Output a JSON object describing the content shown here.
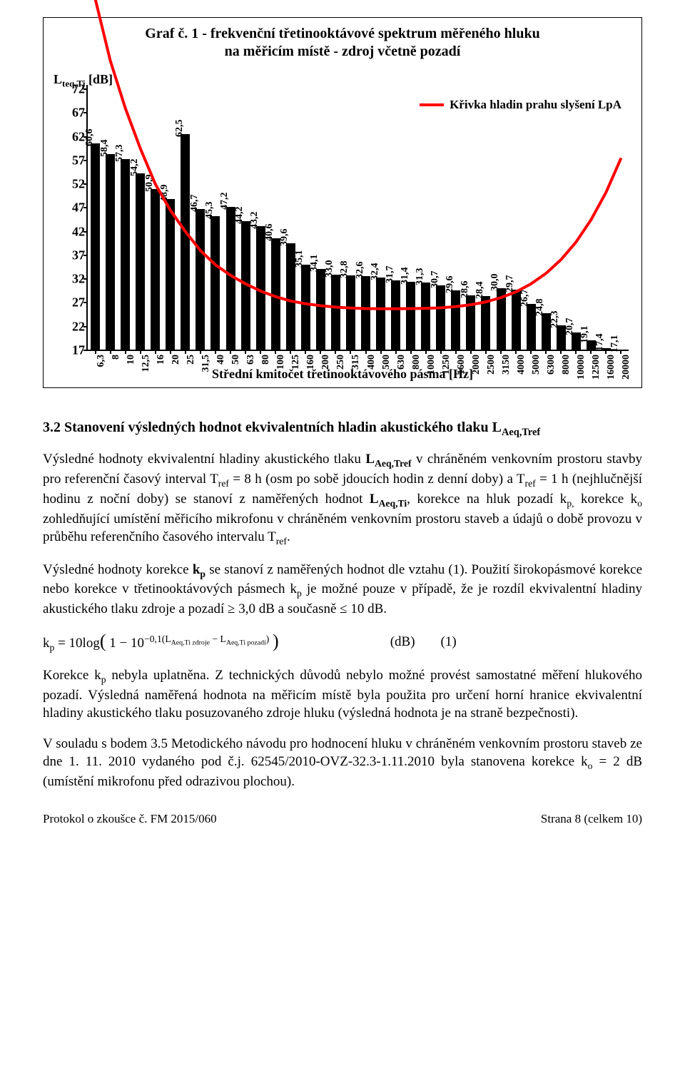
{
  "chart": {
    "type": "bar",
    "title_line1": "Graf č. 1 - frekvenční třetinooktávové spektrum měřeného hluku",
    "title_line2": "na měřicím místě  -  zdroj včetně pozadí",
    "y_axis_label_html": "L<sub>teq,Ti</sub> [dB]",
    "x_axis_label": "Střední kmitočet třetinooktávového pásma [Hz]",
    "legend_label": "Křivka hladin prahu slyšení LpA",
    "ylim_min": 17,
    "ylim_max": 72,
    "ytick_step": 5,
    "bar_color": "#000000",
    "curve_color": "#ff0000",
    "curve_width": 4,
    "background_color": "#ffffff",
    "label_fontsize": 14,
    "categories": [
      "6,3",
      "8",
      "10",
      "12,5",
      "16",
      "20",
      "25",
      "31,5",
      "40",
      "50",
      "63",
      "80",
      "100",
      "125",
      "160",
      "200",
      "250",
      "315",
      "400",
      "500",
      "630",
      "800",
      "1000",
      "1250",
      "1600",
      "2000",
      "2500",
      "3150",
      "4000",
      "5000",
      "6300",
      "8000",
      "10000",
      "12500",
      "16000",
      "20000"
    ],
    "values": [
      60.6,
      58.4,
      57.3,
      54.2,
      50.9,
      48.9,
      62.5,
      46.7,
      45.3,
      47.2,
      44.2,
      43.2,
      40.6,
      39.6,
      35.1,
      34.1,
      33.0,
      32.8,
      32.6,
      32.4,
      31.7,
      31.4,
      31.3,
      30.7,
      29.6,
      28.6,
      28.4,
      30.0,
      29.7,
      26.7,
      24.8,
      22.3,
      20.7,
      19.1,
      17.4,
      17.1
    ],
    "value_labels": [
      "60,6",
      "58,4",
      "57,3",
      "54,2",
      "50,9",
      "48,9",
      "62,5",
      "46,7",
      "45,3",
      "47,2",
      "44,2",
      "43,2",
      "40,6",
      "39,6",
      "35,1",
      "34,1",
      "33,0",
      "32,8",
      "32,6",
      "32,4",
      "31,7",
      "31,4",
      "31,3",
      "30,7",
      "29,6",
      "28,6",
      "28,4",
      "30,0",
      "29,7",
      "26,7",
      "24,8",
      "22,3",
      "20,7",
      "19,1",
      "17,4",
      "17,1"
    ],
    "curve_values": [
      91,
      78,
      68,
      59.5,
      52,
      46.5,
      42,
      38,
      35,
      32.8,
      31,
      29.5,
      28.3,
      27.4,
      26.8,
      26.4,
      26.1,
      25.9,
      25.8,
      25.75,
      25.75,
      25.8,
      25.85,
      25.95,
      26.2,
      26.6,
      27.2,
      28.1,
      29.3,
      31.0,
      33.2,
      36.1,
      39.8,
      44.5,
      50.3,
      57.5
    ]
  },
  "section": {
    "heading_html": "3.2 Stanovení výsledných hodnot ekvivalentních hladin akustického tlaku L<sub>Aeq,Tref</sub>",
    "p1_html": "Výsledné hodnoty ekvivalentní hladiny akustického tlaku <b>L<sub>Aeq,Tref</sub></b> v chráněném venkovním prostoru stavby pro referenční časový interval T<sub>ref</sub> = 8 h (osm po sobě jdoucích hodin z denní doby) a T<sub>ref</sub> = 1 h (nejhlučnější hodinu z noční doby) se stanoví z naměřených hodnot <b>L<sub>Aeq,Ti</sub></b>, korekce na hluk pozadí k<sub>p,</sub> korekce k<sub>o</sub> zohledňující umístění měřicího mikrofonu v chráněném venkovním prostoru staveb a údajů o době provozu v průběhu referenčního časového intervalu T<sub>ref</sub>.",
    "p2_html": "Výsledné hodnoty korekce <b>k<sub>p</sub></b> se stanoví z naměřených hodnot dle vztahu (1). Použití širokopásmové korekce nebo korekce v třetinooktávových pásmech k<sub>p</sub> je možné pouze v případě, že je rozdíl ekvivalentní hladiny akustického tlaku zdroje a pozadí ≥ 3,0 dB a současně ≤ 10 dB.",
    "formula_html": "k<sub>p</sub> = 10log<span class=\"big\">(</span> 1 − 10<sup>−0,1(L<sub>Aeq,Ti zdroje</sub> − L<sub>Aeq,Ti pozadí</sub>)</sup> <span class=\"big\">)</span>",
    "formula_unit": "(dB)",
    "formula_num": "(1)",
    "p3_html": "Korekce k<sub>p</sub> nebyla uplatněna. Z technických důvodů nebylo možné provést samostatné měření hlukového pozadí. Výsledná naměřená hodnota na měřicím místě byla použita pro určení horní hranice ekvivalentní hladiny akustického tlaku posuzovaného zdroje hluku (výsledná hodnota je na straně bezpečnosti).",
    "p4_html": "V souladu s bodem 3.5 Metodického návodu pro hodnocení hluku v chráněném venkovním prostoru staveb ze dne 1. 11. 2010 vydaného pod č.j. 62545/2010-OVZ-32.3-1.11.2010 byla stanovena korekce k<sub>o</sub> = 2 dB (umístění mikrofonu před odrazivou plochou)."
  },
  "footer": {
    "left": "Protokol o zkoušce č. FM 2015/060",
    "right": "Strana 8 (celkem 10)"
  }
}
